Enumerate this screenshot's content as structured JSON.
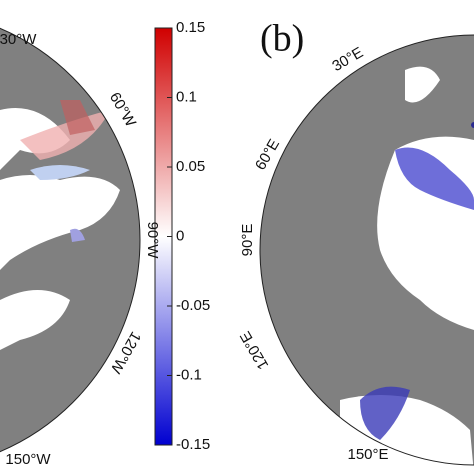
{
  "panel_label": "(b)",
  "colorbar": {
    "lim": [
      -0.15,
      0.15
    ],
    "ticks": [
      0.15,
      0.1,
      0.05,
      0,
      -0.05,
      -0.1,
      -0.15
    ]
  },
  "left_map": {
    "longitude_labels": [
      "30°W",
      "60°W",
      "90°W",
      "120°W",
      "150°W"
    ]
  },
  "right_map": {
    "longitude_labels": [
      "30°E",
      "60°E",
      "90°E",
      "120°E",
      "150°E"
    ]
  }
}
